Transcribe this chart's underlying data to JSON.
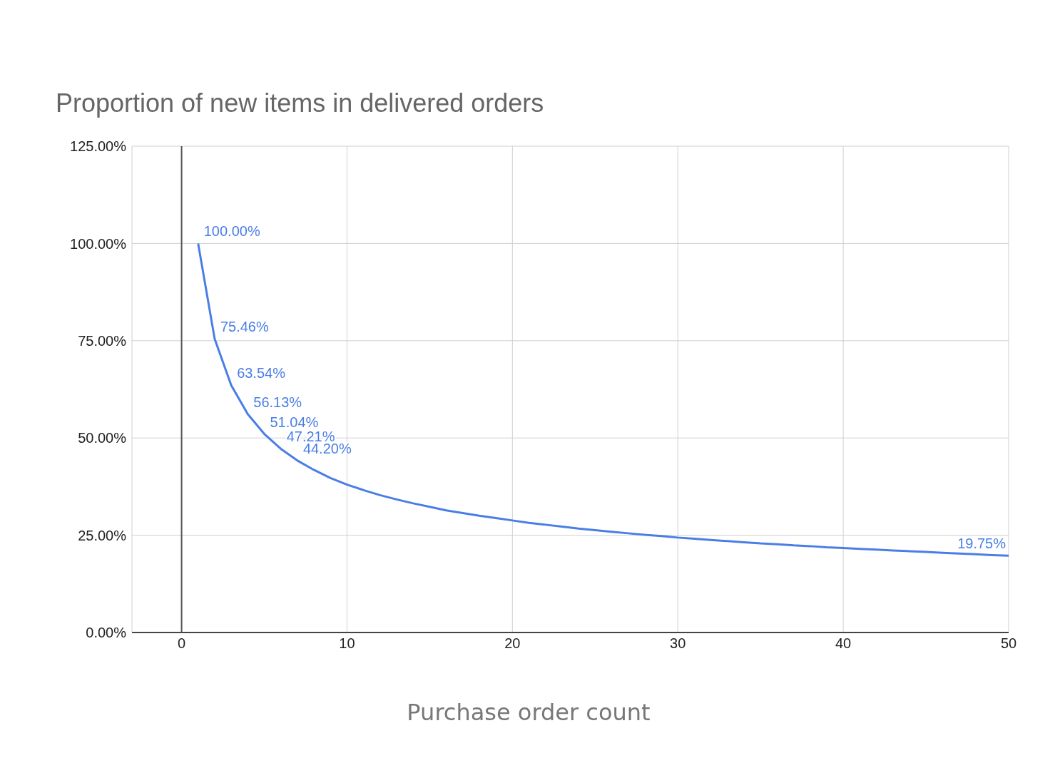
{
  "chart_data": {
    "type": "line",
    "title": "Proportion of new items in delivered orders",
    "xlabel": "Purchase order count",
    "x": [
      1,
      2,
      3,
      4,
      5,
      6,
      7,
      8,
      9,
      10,
      11,
      12,
      13,
      14,
      15,
      16,
      17,
      18,
      19,
      20,
      21,
      22,
      23,
      24,
      25,
      26,
      27,
      28,
      29,
      30,
      31,
      32,
      33,
      34,
      35,
      36,
      37,
      38,
      39,
      40,
      41,
      42,
      43,
      44,
      45,
      46,
      47,
      48,
      49,
      50
    ],
    "series": [
      {
        "color": "#4a7ee6",
        "values": [
          100.0,
          75.46,
          63.54,
          56.13,
          51.04,
          47.21,
          44.2,
          41.8,
          39.7,
          38.0,
          36.6,
          35.3,
          34.2,
          33.2,
          32.3,
          31.4,
          30.7,
          30.0,
          29.4,
          28.8,
          28.2,
          27.7,
          27.2,
          26.7,
          26.3,
          25.9,
          25.5,
          25.1,
          24.8,
          24.4,
          24.1,
          23.8,
          23.5,
          23.2,
          22.9,
          22.7,
          22.4,
          22.2,
          21.9,
          21.7,
          21.5,
          21.3,
          21.1,
          20.9,
          20.7,
          20.5,
          20.3,
          20.1,
          19.9,
          19.75
        ],
        "value_labels": [
          "100.00%",
          "75.46%",
          "63.54%",
          "56.13%",
          "51.04%",
          "47.21%",
          "44.20%",
          null,
          null,
          null,
          null,
          null,
          null,
          null,
          null,
          null,
          null,
          null,
          null,
          null,
          null,
          null,
          null,
          null,
          null,
          null,
          null,
          null,
          null,
          null,
          null,
          null,
          null,
          null,
          null,
          null,
          null,
          null,
          null,
          null,
          null,
          null,
          null,
          null,
          null,
          null,
          null,
          null,
          null,
          "19.75%"
        ]
      }
    ],
    "xlim": [
      -3,
      50
    ],
    "xticks": [
      0,
      10,
      20,
      30,
      40,
      50
    ],
    "ylim": [
      0,
      125
    ],
    "yticks": [
      {
        "value": 0,
        "label": "0.00%"
      },
      {
        "value": 25,
        "label": "25.00%"
      },
      {
        "value": 50,
        "label": "50.00%"
      },
      {
        "value": 75,
        "label": "75.00%"
      },
      {
        "value": 100,
        "label": "100.00%"
      },
      {
        "value": 125,
        "label": "125.00%"
      }
    ],
    "ref_lines": [
      {
        "axis": "x",
        "value": 0,
        "color": "#555555"
      }
    ],
    "grid": true,
    "legend": false,
    "marker": "none",
    "line_style": "solid"
  }
}
